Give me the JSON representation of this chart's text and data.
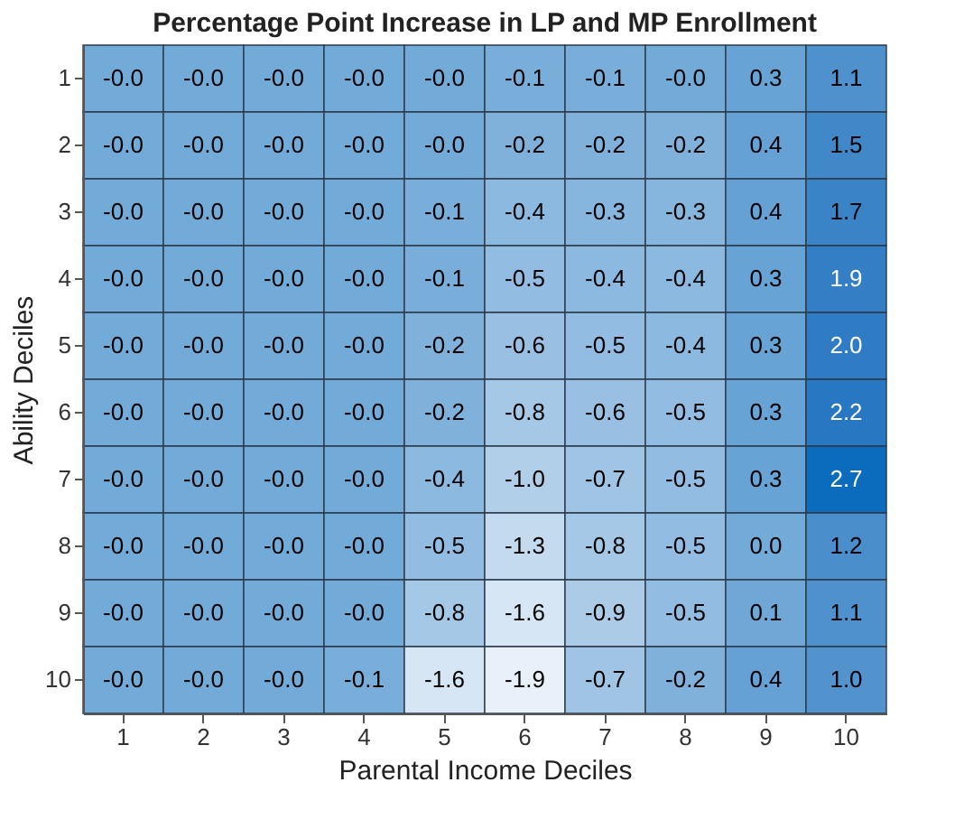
{
  "chart_data": {
    "type": "heatmap",
    "title": "Percentage Point Increase in LP and MP Enrollment",
    "xlabel": "Parental Income Deciles",
    "ylabel": "Ability Deciles",
    "categories": [
      "1",
      "2",
      "3",
      "4",
      "5",
      "6",
      "7",
      "8",
      "9",
      "10"
    ],
    "y_categories": [
      "1",
      "2",
      "3",
      "4",
      "5",
      "6",
      "7",
      "8",
      "9",
      "10"
    ],
    "cells": [
      [
        -0.0,
        -0.0,
        -0.0,
        -0.0,
        -0.0,
        -0.1,
        -0.1,
        -0.0,
        0.3,
        1.1
      ],
      [
        -0.0,
        -0.0,
        -0.0,
        -0.0,
        -0.0,
        -0.2,
        -0.2,
        -0.2,
        0.4,
        1.5
      ],
      [
        -0.0,
        -0.0,
        -0.0,
        -0.0,
        -0.1,
        -0.4,
        -0.3,
        -0.3,
        0.4,
        1.7
      ],
      [
        -0.0,
        -0.0,
        -0.0,
        -0.0,
        -0.1,
        -0.5,
        -0.4,
        -0.4,
        0.3,
        1.9
      ],
      [
        -0.0,
        -0.0,
        -0.0,
        -0.0,
        -0.2,
        -0.6,
        -0.5,
        -0.4,
        0.3,
        2.0
      ],
      [
        -0.0,
        -0.0,
        -0.0,
        -0.0,
        -0.2,
        -0.8,
        -0.6,
        -0.5,
        0.3,
        2.2
      ],
      [
        -0.0,
        -0.0,
        -0.0,
        -0.0,
        -0.4,
        -1.0,
        -0.7,
        -0.5,
        0.3,
        2.7
      ],
      [
        -0.0,
        -0.0,
        -0.0,
        -0.0,
        -0.5,
        -1.3,
        -0.8,
        -0.5,
        0.0,
        1.2
      ],
      [
        -0.0,
        -0.0,
        -0.0,
        -0.0,
        -0.8,
        -1.6,
        -0.9,
        -0.5,
        0.1,
        1.1
      ],
      [
        -0.0,
        -0.0,
        -0.0,
        -0.1,
        -1.6,
        -1.9,
        -0.7,
        -0.2,
        0.4,
        1.0
      ]
    ],
    "cell_labels": [
      [
        "-0.0",
        "-0.0",
        "-0.0",
        "-0.0",
        "-0.0",
        "-0.1",
        "-0.1",
        "-0.0",
        "0.3",
        "1.1"
      ],
      [
        "-0.0",
        "-0.0",
        "-0.0",
        "-0.0",
        "-0.0",
        "-0.2",
        "-0.2",
        "-0.2",
        "0.4",
        "1.5"
      ],
      [
        "-0.0",
        "-0.0",
        "-0.0",
        "-0.0",
        "-0.1",
        "-0.4",
        "-0.3",
        "-0.3",
        "0.4",
        "1.7"
      ],
      [
        "-0.0",
        "-0.0",
        "-0.0",
        "-0.0",
        "-0.1",
        "-0.5",
        "-0.4",
        "-0.4",
        "0.3",
        "1.9"
      ],
      [
        "-0.0",
        "-0.0",
        "-0.0",
        "-0.0",
        "-0.2",
        "-0.6",
        "-0.5",
        "-0.4",
        "0.3",
        "2.0"
      ],
      [
        "-0.0",
        "-0.0",
        "-0.0",
        "-0.0",
        "-0.2",
        "-0.8",
        "-0.6",
        "-0.5",
        "0.3",
        "2.2"
      ],
      [
        "-0.0",
        "-0.0",
        "-0.0",
        "-0.0",
        "-0.4",
        "-1.0",
        "-0.7",
        "-0.5",
        "0.3",
        "2.7"
      ],
      [
        "-0.0",
        "-0.0",
        "-0.0",
        "-0.0",
        "-0.5",
        "-1.3",
        "-0.8",
        "-0.5",
        "0.0",
        "1.2"
      ],
      [
        "-0.0",
        "-0.0",
        "-0.0",
        "-0.0",
        "-0.8",
        "-1.6",
        "-0.9",
        "-0.5",
        "0.1",
        "1.1"
      ],
      [
        "-0.0",
        "-0.0",
        "-0.0",
        "-0.1",
        "-1.6",
        "-1.9",
        "-0.7",
        "-0.2",
        "0.4",
        "1.0"
      ]
    ],
    "legend": false,
    "grid": false
  }
}
